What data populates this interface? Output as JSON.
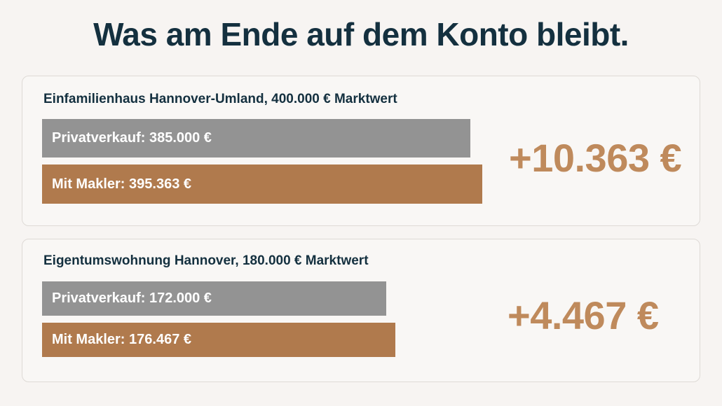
{
  "title": "Was am Ende auf dem Konto bleibt.",
  "colors": {
    "private": "#939393",
    "broker": "#b07a4d",
    "difference": "#bf8a5c",
    "title": "#14303f"
  },
  "chart_data": [
    {
      "type": "bar",
      "orientation": "horizontal",
      "title": "Einfamilienhaus Hannover-Umland, 400.000 € Marktwert",
      "categories": [
        "Privatverkauf",
        "Mit Makler"
      ],
      "values": [
        385000,
        395363
      ],
      "labels": [
        "Privatverkauf: 385.000 €",
        "Mit Makler: 395.363 €"
      ],
      "difference_label": "+10.363 €",
      "xlim": [
        0,
        630000
      ]
    },
    {
      "type": "bar",
      "orientation": "horizontal",
      "title": "Eigentumswohnung Hannover, 180.000 € Marktwert",
      "categories": [
        "Privatverkauf",
        "Mit Makler"
      ],
      "values": [
        172000,
        176467
      ],
      "labels": [
        "Privatverkauf: 172.000 €",
        "Mit Makler: 176.467 €"
      ],
      "difference_label": "+4.467 €",
      "xlim": [
        0,
        350000
      ]
    }
  ]
}
